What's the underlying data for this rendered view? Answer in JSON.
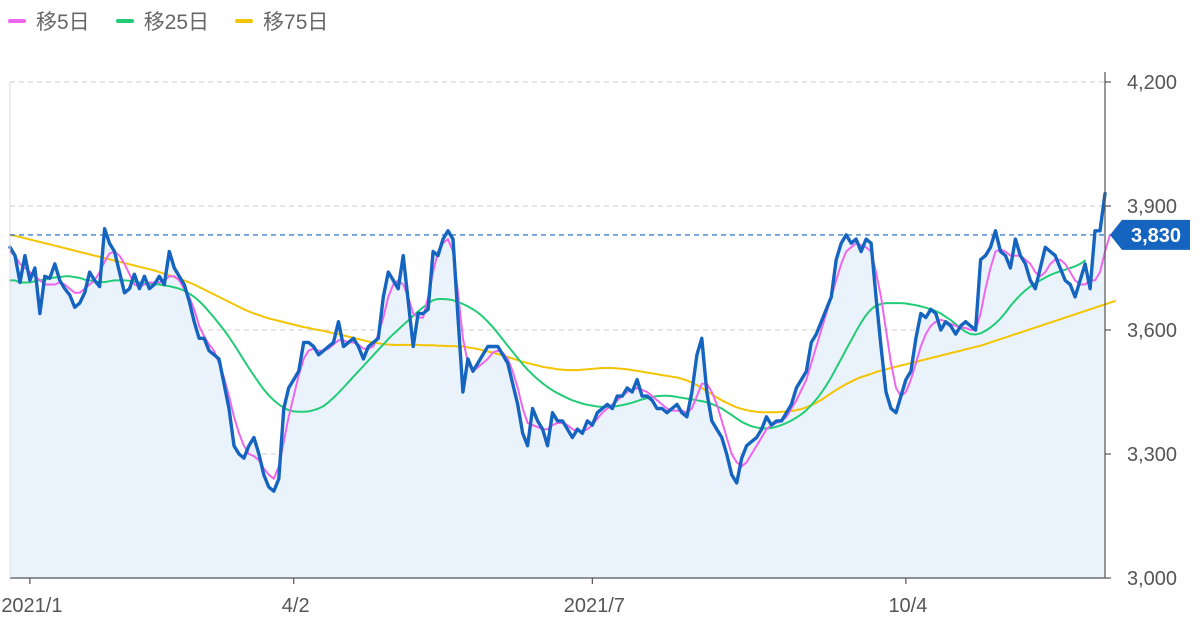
{
  "chart_data": {
    "type": "line",
    "ylim": [
      3000,
      4200
    ],
    "y_ticks": [
      {
        "value": 3000,
        "label": "3,000"
      },
      {
        "value": 3300,
        "label": "3,300"
      },
      {
        "value": 3600,
        "label": "3,600"
      },
      {
        "value": 3900,
        "label": "3,900"
      },
      {
        "value": 4200,
        "label": "4,200"
      }
    ],
    "x_ticks": [
      {
        "index": 4,
        "label": "2021/1"
      },
      {
        "index": 57,
        "label": "4/2"
      },
      {
        "index": 117,
        "label": "2021/7"
      },
      {
        "index": 180,
        "label": "10/4"
      }
    ],
    "grid": true,
    "legend_position": "top-left",
    "last_value": 3830,
    "last_value_label": "3,830",
    "series": [
      {
        "name": "",
        "role": "price",
        "color": "#1565c0",
        "values": [
          3800,
          3780,
          3715,
          3780,
          3720,
          3750,
          3640,
          3730,
          3725,
          3760,
          3720,
          3700,
          3685,
          3655,
          3665,
          3690,
          3740,
          3720,
          3705,
          3845,
          3810,
          3790,
          3740,
          3690,
          3700,
          3735,
          3700,
          3730,
          3700,
          3710,
          3730,
          3710,
          3790,
          3750,
          3730,
          3710,
          3670,
          3620,
          3580,
          3580,
          3550,
          3540,
          3530,
          3470,
          3410,
          3320,
          3300,
          3290,
          3320,
          3340,
          3300,
          3250,
          3220,
          3210,
          3240,
          3410,
          3460,
          3480,
          3500,
          3570,
          3570,
          3560,
          3540,
          3550,
          3560,
          3570,
          3620,
          3560,
          3570,
          3580,
          3560,
          3530,
          3560,
          3570,
          3580,
          3680,
          3740,
          3720,
          3700,
          3780,
          3670,
          3560,
          3640,
          3640,
          3650,
          3790,
          3780,
          3820,
          3840,
          3820,
          3630,
          3450,
          3530,
          3500,
          3520,
          3540,
          3560,
          3560,
          3560,
          3540,
          3520,
          3470,
          3420,
          3350,
          3320,
          3410,
          3380,
          3360,
          3320,
          3400,
          3380,
          3380,
          3360,
          3340,
          3360,
          3350,
          3380,
          3370,
          3400,
          3410,
          3420,
          3410,
          3440,
          3440,
          3460,
          3450,
          3480,
          3440,
          3440,
          3430,
          3410,
          3410,
          3400,
          3410,
          3420,
          3400,
          3390,
          3450,
          3540,
          3580,
          3450,
          3380,
          3360,
          3340,
          3300,
          3250,
          3230,
          3290,
          3320,
          3330,
          3340,
          3360,
          3390,
          3370,
          3380,
          3380,
          3400,
          3420,
          3460,
          3480,
          3500,
          3570,
          3590,
          3620,
          3650,
          3680,
          3770,
          3810,
          3830,
          3810,
          3820,
          3790,
          3820,
          3810,
          3680,
          3560,
          3450,
          3410,
          3400,
          3440,
          3480,
          3500,
          3580,
          3640,
          3630,
          3650,
          3640,
          3600,
          3620,
          3610,
          3590,
          3610,
          3620,
          3610,
          3600,
          3770,
          3780,
          3800,
          3840,
          3790,
          3780,
          3750,
          3820,
          3780,
          3760,
          3720,
          3700,
          3750,
          3800,
          3790,
          3780,
          3750,
          3720,
          3710,
          3680,
          3720,
          3760,
          3700,
          3840,
          3840,
          3930
        ]
      },
      {
        "name": "移5日",
        "color": "#ee66ee",
        "values": [
          3790,
          3780,
          3760,
          3750,
          3740,
          3730,
          3720,
          3710,
          3710,
          3710,
          3715,
          3710,
          3700,
          3690,
          3690,
          3700,
          3710,
          3720,
          3740,
          3765,
          3785,
          3790,
          3780,
          3760,
          3735,
          3710,
          3705,
          3710,
          3715,
          3715,
          3715,
          3720,
          3730,
          3730,
          3720,
          3700,
          3680,
          3650,
          3610,
          3585,
          3565,
          3550,
          3520,
          3485,
          3440,
          3390,
          3350,
          3320,
          3300,
          3295,
          3285,
          3265,
          3250,
          3240,
          3270,
          3330,
          3390,
          3440,
          3490,
          3530,
          3550,
          3555,
          3550,
          3550,
          3555,
          3565,
          3575,
          3575,
          3570,
          3570,
          3565,
          3555,
          3555,
          3560,
          3590,
          3630,
          3680,
          3710,
          3720,
          3710,
          3680,
          3640,
          3630,
          3630,
          3680,
          3740,
          3790,
          3810,
          3820,
          3790,
          3690,
          3580,
          3520,
          3500,
          3510,
          3520,
          3530,
          3545,
          3550,
          3545,
          3530,
          3500,
          3460,
          3410,
          3375,
          3370,
          3365,
          3360,
          3360,
          3370,
          3375,
          3375,
          3370,
          3360,
          3355,
          3355,
          3360,
          3370,
          3385,
          3400,
          3410,
          3420,
          3430,
          3440,
          3450,
          3455,
          3460,
          3455,
          3450,
          3440,
          3430,
          3420,
          3410,
          3405,
          3405,
          3405,
          3400,
          3410,
          3440,
          3470,
          3470,
          3450,
          3420,
          3380,
          3340,
          3300,
          3280,
          3270,
          3280,
          3300,
          3320,
          3340,
          3360,
          3370,
          3375,
          3380,
          3390,
          3410,
          3430,
          3455,
          3480,
          3520,
          3560,
          3600,
          3640,
          3680,
          3720,
          3760,
          3790,
          3800,
          3810,
          3805,
          3800,
          3790,
          3740,
          3680,
          3600,
          3520,
          3460,
          3440,
          3450,
          3480,
          3520,
          3560,
          3590,
          3610,
          3620,
          3625,
          3620,
          3615,
          3610,
          3605,
          3605,
          3600,
          3600,
          3640,
          3700,
          3750,
          3790,
          3795,
          3790,
          3780,
          3780,
          3780,
          3770,
          3760,
          3740,
          3730,
          3740,
          3760,
          3770,
          3770,
          3760,
          3740,
          3720,
          3710,
          3710,
          3720,
          3720,
          3740,
          3790,
          3830
        ]
      },
      {
        "name": "移25日",
        "color": "#22cc77",
        "values": [
          3720,
          3720,
          3715,
          3715,
          3715,
          3718,
          3720,
          3722,
          3725,
          3727,
          3728,
          3730,
          3730,
          3728,
          3726,
          3722,
          3720,
          3718,
          3716,
          3716,
          3718,
          3720,
          3720,
          3720,
          3719,
          3717,
          3715,
          3713,
          3712,
          3711,
          3710,
          3708,
          3706,
          3703,
          3700,
          3695,
          3688,
          3680,
          3670,
          3658,
          3644,
          3630,
          3615,
          3600,
          3583,
          3565,
          3546,
          3527,
          3508,
          3490,
          3472,
          3456,
          3442,
          3430,
          3420,
          3412,
          3406,
          3403,
          3402,
          3402,
          3403,
          3406,
          3410,
          3416,
          3425,
          3436,
          3448,
          3461,
          3474,
          3487,
          3500,
          3513,
          3526,
          3539,
          3552,
          3565,
          3578,
          3590,
          3601,
          3612,
          3623,
          3634,
          3645,
          3655,
          3664,
          3672,
          3675,
          3675,
          3674,
          3672,
          3668,
          3663,
          3657,
          3650,
          3642,
          3632,
          3620,
          3607,
          3592,
          3577,
          3562,
          3547,
          3532,
          3517,
          3504,
          3492,
          3481,
          3471,
          3462,
          3454,
          3447,
          3441,
          3435,
          3430,
          3426,
          3422,
          3419,
          3417,
          3415,
          3414,
          3414,
          3415,
          3416,
          3418,
          3421,
          3424,
          3428,
          3432,
          3435,
          3438,
          3440,
          3441,
          3441,
          3440,
          3438,
          3436,
          3434,
          3432,
          3430,
          3428,
          3425,
          3421,
          3416,
          3410,
          3402,
          3394,
          3386,
          3378,
          3372,
          3367,
          3364,
          3362,
          3362,
          3363,
          3366,
          3370,
          3375,
          3381,
          3388,
          3396,
          3406,
          3418,
          3432,
          3448,
          3466,
          3486,
          3508,
          3530,
          3553,
          3575,
          3597,
          3618,
          3636,
          3650,
          3659,
          3663,
          3665,
          3665,
          3665,
          3665,
          3664,
          3662,
          3660,
          3657,
          3654,
          3650,
          3646,
          3640,
          3632,
          3624,
          3614,
          3604,
          3596,
          3590,
          3589,
          3592,
          3598,
          3606,
          3616,
          3628,
          3642,
          3658,
          3672,
          3685,
          3696,
          3705,
          3713,
          3720,
          3727,
          3733,
          3738,
          3742,
          3746,
          3750,
          3754,
          3760,
          3768
        ]
      },
      {
        "name": "移75日",
        "color": "#f5c400",
        "values": [
          3830,
          3828,
          3825,
          3822,
          3819,
          3816,
          3813,
          3810,
          3807,
          3804,
          3801,
          3798,
          3795,
          3792,
          3789,
          3786,
          3783,
          3780,
          3777,
          3774,
          3771,
          3768,
          3765,
          3762,
          3759,
          3756,
          3753,
          3750,
          3747,
          3744,
          3740,
          3736,
          3732,
          3728,
          3724,
          3720,
          3715,
          3710,
          3704,
          3698,
          3692,
          3686,
          3680,
          3674,
          3668,
          3662,
          3656,
          3650,
          3645,
          3640,
          3636,
          3632,
          3628,
          3625,
          3622,
          3619,
          3616,
          3613,
          3610,
          3607,
          3605,
          3602,
          3600,
          3598,
          3595,
          3592,
          3590,
          3587,
          3584,
          3581,
          3578,
          3575,
          3572,
          3570,
          3568,
          3566,
          3565,
          3564,
          3564,
          3564,
          3564,
          3564,
          3564,
          3563,
          3563,
          3563,
          3562,
          3562,
          3561,
          3561,
          3560,
          3560,
          3558,
          3556,
          3554,
          3551,
          3548,
          3545,
          3542,
          3539,
          3535,
          3531,
          3527,
          3523,
          3520,
          3517,
          3514,
          3511,
          3509,
          3507,
          3505,
          3504,
          3503,
          3503,
          3503,
          3504,
          3505,
          3506,
          3507,
          3508,
          3508,
          3508,
          3507,
          3506,
          3505,
          3503,
          3501,
          3499,
          3497,
          3495,
          3493,
          3491,
          3489,
          3487,
          3485,
          3482,
          3478,
          3473,
          3467,
          3460,
          3452,
          3445,
          3437,
          3430,
          3424,
          3418,
          3413,
          3409,
          3406,
          3404,
          3402,
          3401,
          3401,
          3401,
          3401,
          3402,
          3403,
          3404,
          3406,
          3409,
          3413,
          3418,
          3424,
          3431,
          3439,
          3447,
          3455,
          3462,
          3469,
          3475,
          3481,
          3486,
          3490,
          3494,
          3498,
          3502,
          3505,
          3508,
          3511,
          3514,
          3517,
          3520,
          3523,
          3526,
          3529,
          3532,
          3535,
          3538,
          3541,
          3544,
          3547,
          3550,
          3553,
          3556,
          3559,
          3562,
          3566,
          3570,
          3574,
          3578,
          3582,
          3586,
          3590,
          3594,
          3598,
          3602,
          3606,
          3610,
          3614,
          3618,
          3622,
          3626,
          3630,
          3634,
          3638,
          3642,
          3646,
          3650,
          3654,
          3658,
          3662,
          3666,
          3670
        ]
      }
    ]
  }
}
